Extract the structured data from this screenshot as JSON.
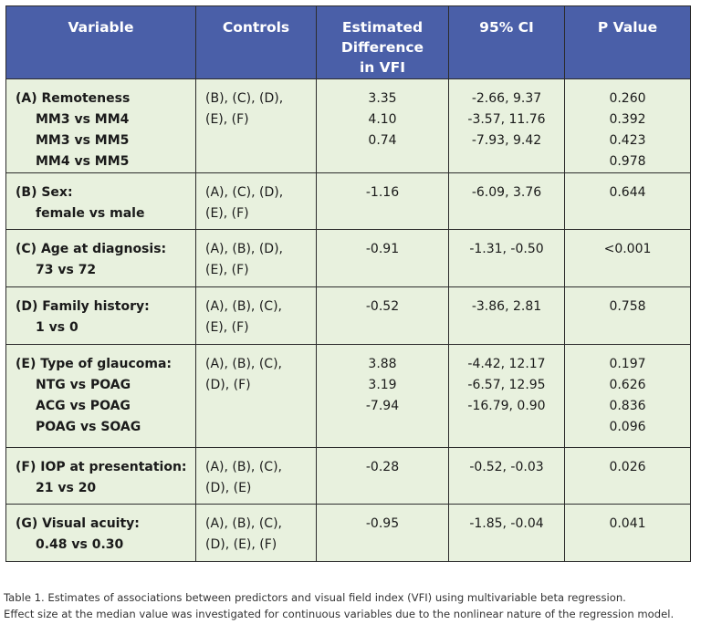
{
  "table": {
    "headers": {
      "variable": "Variable",
      "controls": "Controls",
      "diff": [
        "Estimated",
        "Difference",
        "in VFI"
      ],
      "ci": "95% CI",
      "p": "P Value"
    },
    "rows": [
      {
        "variable": "(A) Remoteness",
        "subs": [
          "MM3 vs MM4",
          "MM3 vs MM5",
          "MM4 vs MM5"
        ],
        "controls": [
          "(B), (C), (D),",
          "(E), (F)"
        ],
        "diff": [
          "3.35",
          "4.10",
          "0.74"
        ],
        "ci": [
          "-2.66, 9.37",
          "-3.57, 11.76",
          "-7.93, 9.42"
        ],
        "p": [
          "0.260",
          "0.392",
          "0.423",
          "0.978"
        ]
      },
      {
        "variable": "(B) Sex:",
        "subs": [
          "female vs male"
        ],
        "controls": [
          "(A), (C), (D),",
          "(E), (F)"
        ],
        "diff": [
          "-1.16"
        ],
        "ci": [
          "-6.09, 3.76"
        ],
        "p": [
          "0.644"
        ]
      },
      {
        "variable": "(C) Age at diagnosis:",
        "subs": [
          "73 vs 72"
        ],
        "controls": [
          "(A), (B), (D),",
          "(E), (F)"
        ],
        "diff": [
          "-0.91"
        ],
        "ci": [
          "-1.31, -0.50"
        ],
        "p": [
          "<0.001"
        ]
      },
      {
        "variable": "(D) Family history:",
        "subs": [
          "1 vs 0"
        ],
        "controls": [
          "(A), (B), (C),",
          "(E), (F)"
        ],
        "diff": [
          "-0.52"
        ],
        "ci": [
          "-3.86, 2.81"
        ],
        "p": [
          "0.758"
        ]
      },
      {
        "variable": "(E) Type of glaucoma:",
        "subs": [
          "NTG vs POAG",
          "ACG vs POAG",
          "POAG vs SOAG"
        ],
        "controls": [
          "(A), (B), (C),",
          "(D), (F)"
        ],
        "diff": [
          "3.88",
          "3.19",
          "-7.94"
        ],
        "ci": [
          "-4.42, 12.17",
          "-6.57, 12.95",
          "-16.79, 0.90"
        ],
        "p": [
          "0.197",
          "0.626",
          "0.836",
          "0.096"
        ]
      },
      {
        "variable": "(F) IOP at presentation:",
        "subs": [
          "21 vs 20"
        ],
        "controls": [
          "(A), (B), (C),",
          "(D), (E)"
        ],
        "diff": [
          "-0.28"
        ],
        "ci": [
          "-0.52, -0.03"
        ],
        "p": [
          "0.026"
        ]
      },
      {
        "variable": "(G) Visual acuity:",
        "subs": [
          "0.48 vs 0.30"
        ],
        "controls": [
          "(A), (B), (C),",
          "(D), (E), (F)"
        ],
        "diff": [
          "-0.95"
        ],
        "ci": [
          "-1.85, -0.04"
        ],
        "p": [
          "0.041"
        ]
      }
    ]
  },
  "caption": [
    "Table 1. Estimates of associations between predictors and visual field index (VFI) using multivariable beta regression.",
    "Effect size at the median value was investigated for continuous variables due to the nonlinear nature of the regression model."
  ]
}
